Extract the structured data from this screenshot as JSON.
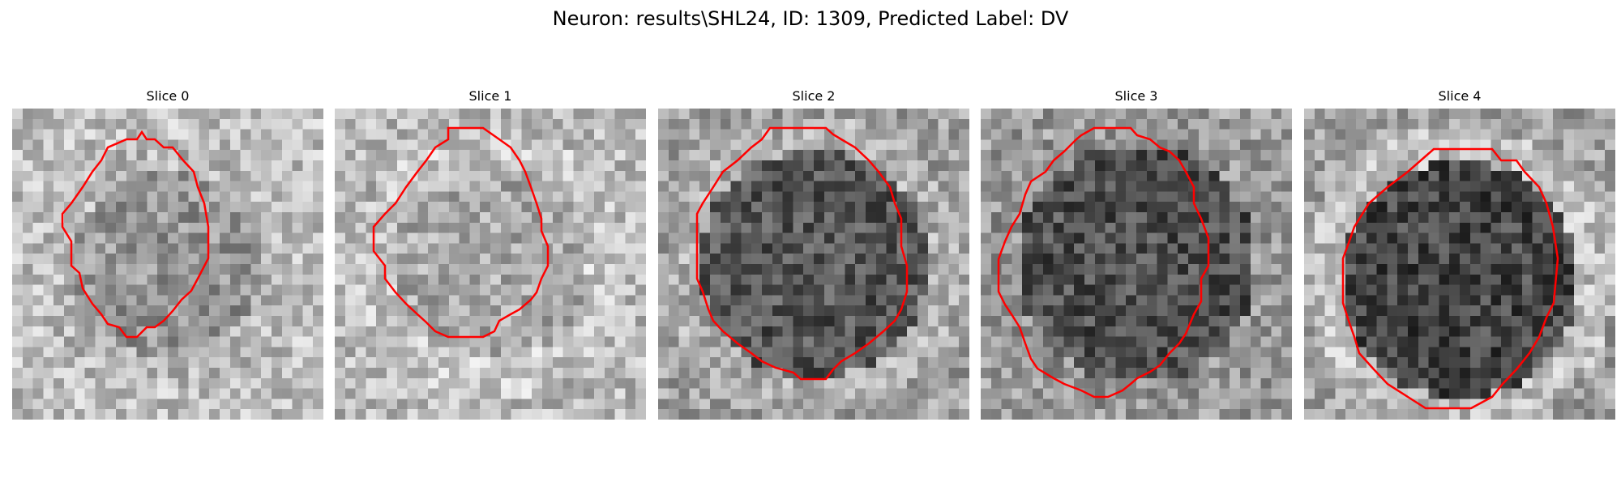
{
  "title": "Neuron: results\\SHL24, ID: 1309, Predicted Label: DV",
  "slices": [
    {
      "label": "Slice 0",
      "interior": 150,
      "ring": 185,
      "outside": 190,
      "contour_color": "#ff0000"
    },
    {
      "label": "Slice 1",
      "interior": 170,
      "ring": 200,
      "outside": 185,
      "contour_color": "#ff0000"
    },
    {
      "label": "Slice 2",
      "interior": 85,
      "ring": 175,
      "outside": 160,
      "contour_color": "#ff0000"
    },
    {
      "label": "Slice 3",
      "interior": 80,
      "ring": 150,
      "outside": 155,
      "contour_color": "#ff0000"
    },
    {
      "label": "Slice 4",
      "interior": 70,
      "ring": 190,
      "outside": 160,
      "contour_color": "#ff0000"
    }
  ]
}
